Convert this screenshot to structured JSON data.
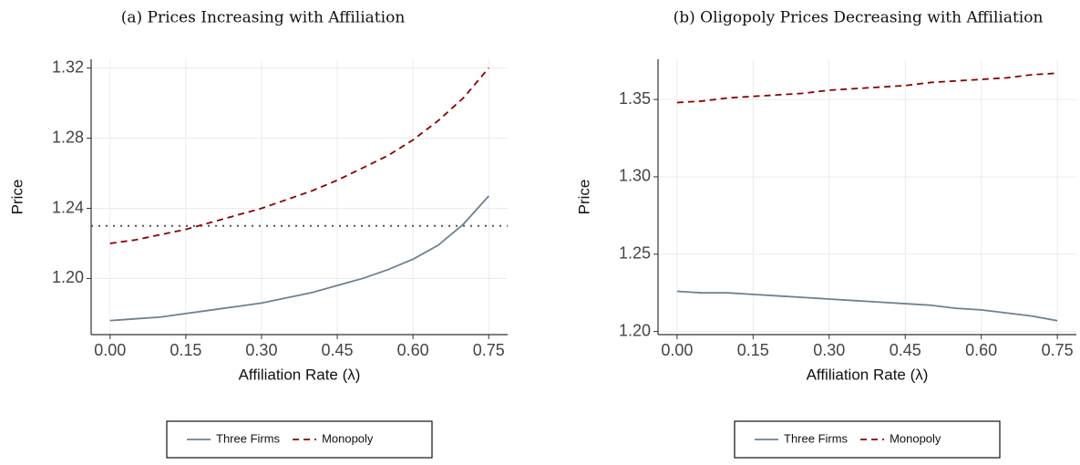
{
  "chart_data": [
    {
      "type": "line",
      "title": "(a) Prices Increasing with Affiliation",
      "x_label": "Affiliation Rate  (λ)",
      "y_label": "Price",
      "x": [
        0,
        0.05,
        0.1,
        0.15,
        0.2,
        0.25,
        0.3,
        0.35,
        0.4,
        0.45,
        0.5,
        0.55,
        0.6,
        0.65,
        0.7,
        0.75
      ],
      "series": [
        {
          "name": "Three Firms",
          "color": "#708090",
          "dash": "solid",
          "values": [
            1.176,
            1.177,
            1.178,
            1.18,
            1.182,
            1.184,
            1.186,
            1.189,
            1.192,
            1.196,
            1.2,
            1.205,
            1.211,
            1.219,
            1.231,
            1.247
          ]
        },
        {
          "name": "Monopoly",
          "color": "#8b0000",
          "dash": "dashed",
          "values": [
            1.22,
            1.222,
            1.225,
            1.228,
            1.232,
            1.236,
            1.24,
            1.245,
            1.25,
            1.256,
            1.263,
            1.27,
            1.279,
            1.29,
            1.303,
            1.32
          ]
        }
      ],
      "hline": 1.23,
      "hline_color": "#555555",
      "xlim": [
        -0.0375,
        0.7875
      ],
      "ylim": [
        1.168,
        1.325
      ],
      "xticks": [
        {
          "value": 0,
          "label": "0.00"
        },
        0.15,
        {
          "value": 0.3,
          "label": "0.30"
        },
        0.45,
        {
          "value": 0.6,
          "label": "0.60"
        },
        0.75
      ],
      "yticks": [
        {
          "value": 1.2,
          "label": "1.20"
        },
        {
          "value": 1.24,
          "label": "1.24"
        },
        {
          "value": 1.28,
          "label": "1.28"
        },
        1.32
      ],
      "grid": true,
      "legend": "bottom"
    },
    {
      "type": "line",
      "title": "(b) Oligopoly Prices Decreasing with Affiliation",
      "x_label": "Affiliation Rate  (λ)",
      "y_label": "Price",
      "x": [
        0,
        0.05,
        0.1,
        0.15,
        0.2,
        0.25,
        0.3,
        0.35,
        0.4,
        0.45,
        0.5,
        0.55,
        0.6,
        0.65,
        0.7,
        0.75
      ],
      "series": [
        {
          "name": "Three Firms",
          "color": "#708090",
          "dash": "solid",
          "values": [
            1.226,
            1.225,
            1.225,
            1.224,
            1.223,
            1.222,
            1.221,
            1.22,
            1.219,
            1.218,
            1.217,
            1.215,
            1.214,
            1.212,
            1.21,
            1.207
          ]
        },
        {
          "name": "Monopoly",
          "color": "#8b0000",
          "dash": "dashed",
          "values": [
            1.348,
            1.349,
            1.351,
            1.352,
            1.353,
            1.354,
            1.356,
            1.357,
            1.358,
            1.359,
            1.361,
            1.362,
            1.363,
            1.364,
            1.366,
            1.367
          ]
        }
      ],
      "xlim": [
        -0.0375,
        0.7875
      ],
      "ylim": [
        1.198,
        1.376
      ],
      "xticks": [
        {
          "value": 0,
          "label": "0.00"
        },
        0.15,
        {
          "value": 0.3,
          "label": "0.30"
        },
        0.45,
        {
          "value": 0.6,
          "label": "0.60"
        },
        0.75
      ],
      "yticks": [
        {
          "value": 1.2,
          "label": "1.20"
        },
        1.25,
        {
          "value": 1.3,
          "label": "1.30"
        },
        1.35
      ],
      "grid": true,
      "legend": "bottom"
    }
  ]
}
